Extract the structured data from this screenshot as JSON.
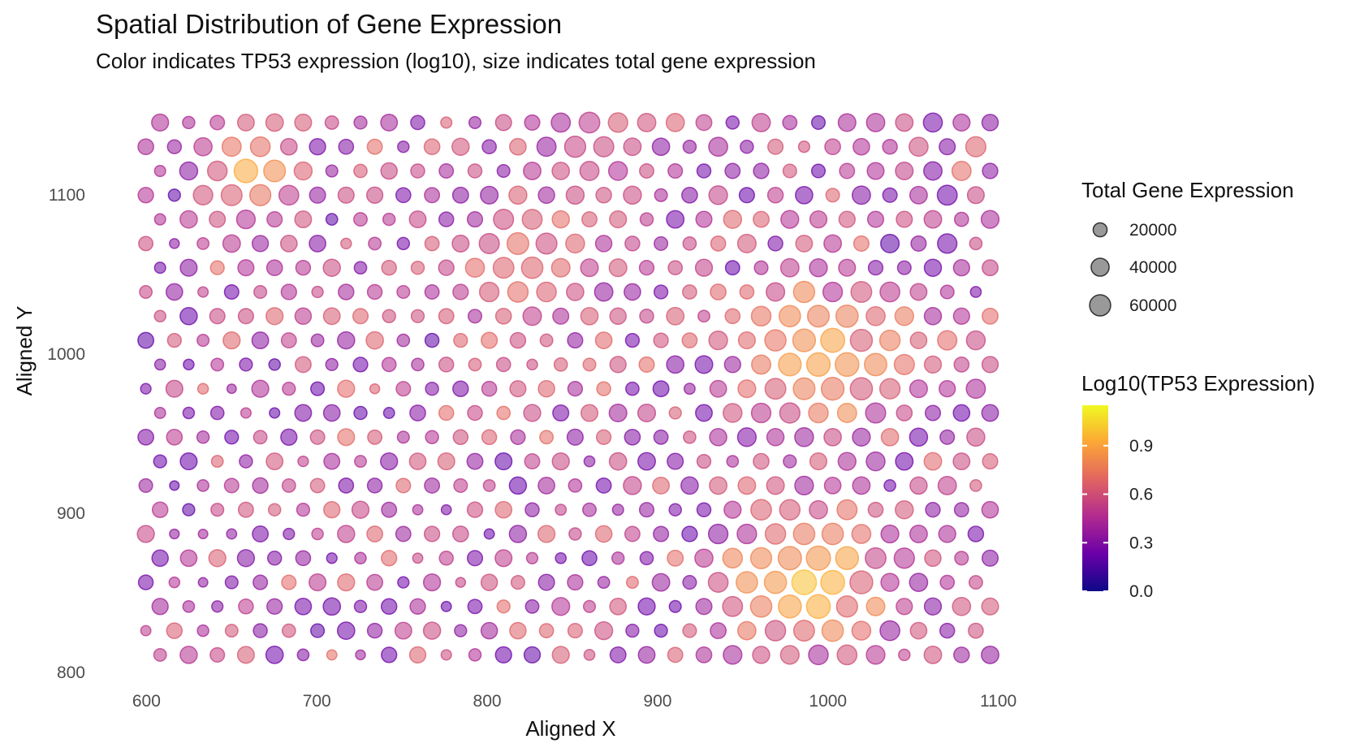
{
  "chart_data": {
    "type": "scatter",
    "title": "Spatial Distribution of Gene Expression",
    "subtitle": "Color indicates TP53 expression (log10), size indicates total gene expression",
    "xlabel": "Aligned X",
    "ylabel": "Aligned Y",
    "xlim": [
      596,
      1104
    ],
    "ylim": [
      800,
      1152
    ],
    "x_ticks": [
      600,
      700,
      800,
      900,
      1000,
      1100
    ],
    "y_ticks": [
      800,
      900,
      1000,
      1100
    ],
    "grid": false,
    "point_opacity": 0.55,
    "grid_layout": {
      "x_start": 608,
      "x_step": 16.8,
      "columns": 30,
      "y_start": 811,
      "y_step": 15.2,
      "rows": 23,
      "odd_row_x_offset": -8.4
    },
    "size_legend": {
      "title": "Total Gene Expression",
      "entries": [
        {
          "label": "20000",
          "value": 20000
        },
        {
          "label": "40000",
          "value": 40000
        },
        {
          "label": "60000",
          "value": 60000
        }
      ]
    },
    "color_legend": {
      "title": "Log10(TP53 Expression)",
      "range": [
        0,
        1.15
      ],
      "ticks": [
        {
          "label": "0.0",
          "value": 0.0
        },
        {
          "label": "0.3",
          "value": 0.3
        },
        {
          "label": "0.6",
          "value": 0.6
        },
        {
          "label": "0.9",
          "value": 0.9
        }
      ],
      "colormap": "plasma",
      "stops": [
        "#0d0887",
        "#6a00a8",
        "#b12a90",
        "#e16462",
        "#fca636",
        "#f0f921"
      ]
    }
  }
}
